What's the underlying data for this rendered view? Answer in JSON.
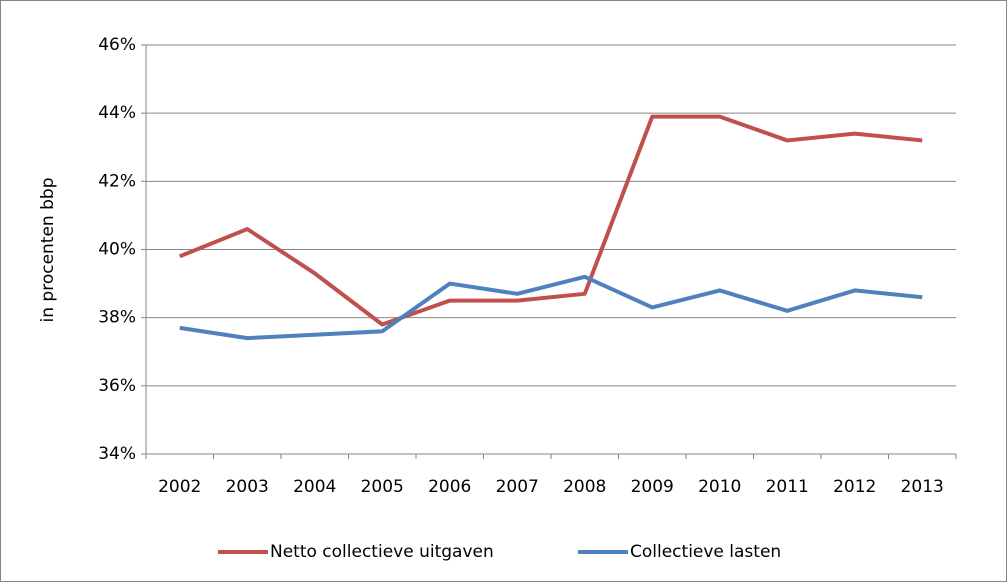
{
  "chart_data": {
    "type": "line",
    "y_label": "in procenten bbp",
    "categories": [
      "2002",
      "2003",
      "2004",
      "2005",
      "2006",
      "2007",
      "2008",
      "2009",
      "2010",
      "2011",
      "2012",
      "2013"
    ],
    "series": [
      {
        "name": "Netto collectieve uitgaven",
        "color": "#c0504d",
        "values": [
          39.8,
          40.6,
          39.3,
          37.8,
          38.5,
          38.5,
          38.7,
          43.9,
          43.9,
          43.2,
          43.4,
          43.2
        ]
      },
      {
        "name": "Collectieve lasten",
        "color": "#4f81bd",
        "values": [
          37.7,
          37.4,
          37.5,
          37.6,
          39.0,
          38.7,
          39.2,
          38.3,
          38.8,
          38.2,
          38.8,
          38.6
        ]
      }
    ],
    "ylim": [
      34,
      46
    ],
    "yticks": [
      {
        "value": 34,
        "label": "34%"
      },
      {
        "value": 36,
        "label": "36%"
      },
      {
        "value": 38,
        "label": "38%"
      },
      {
        "value": 40,
        "label": "40%"
      },
      {
        "value": 42,
        "label": "42%"
      },
      {
        "value": 44,
        "label": "44%"
      },
      {
        "value": 46,
        "label": "46%"
      }
    ],
    "grid": true,
    "legend": "bottom"
  }
}
